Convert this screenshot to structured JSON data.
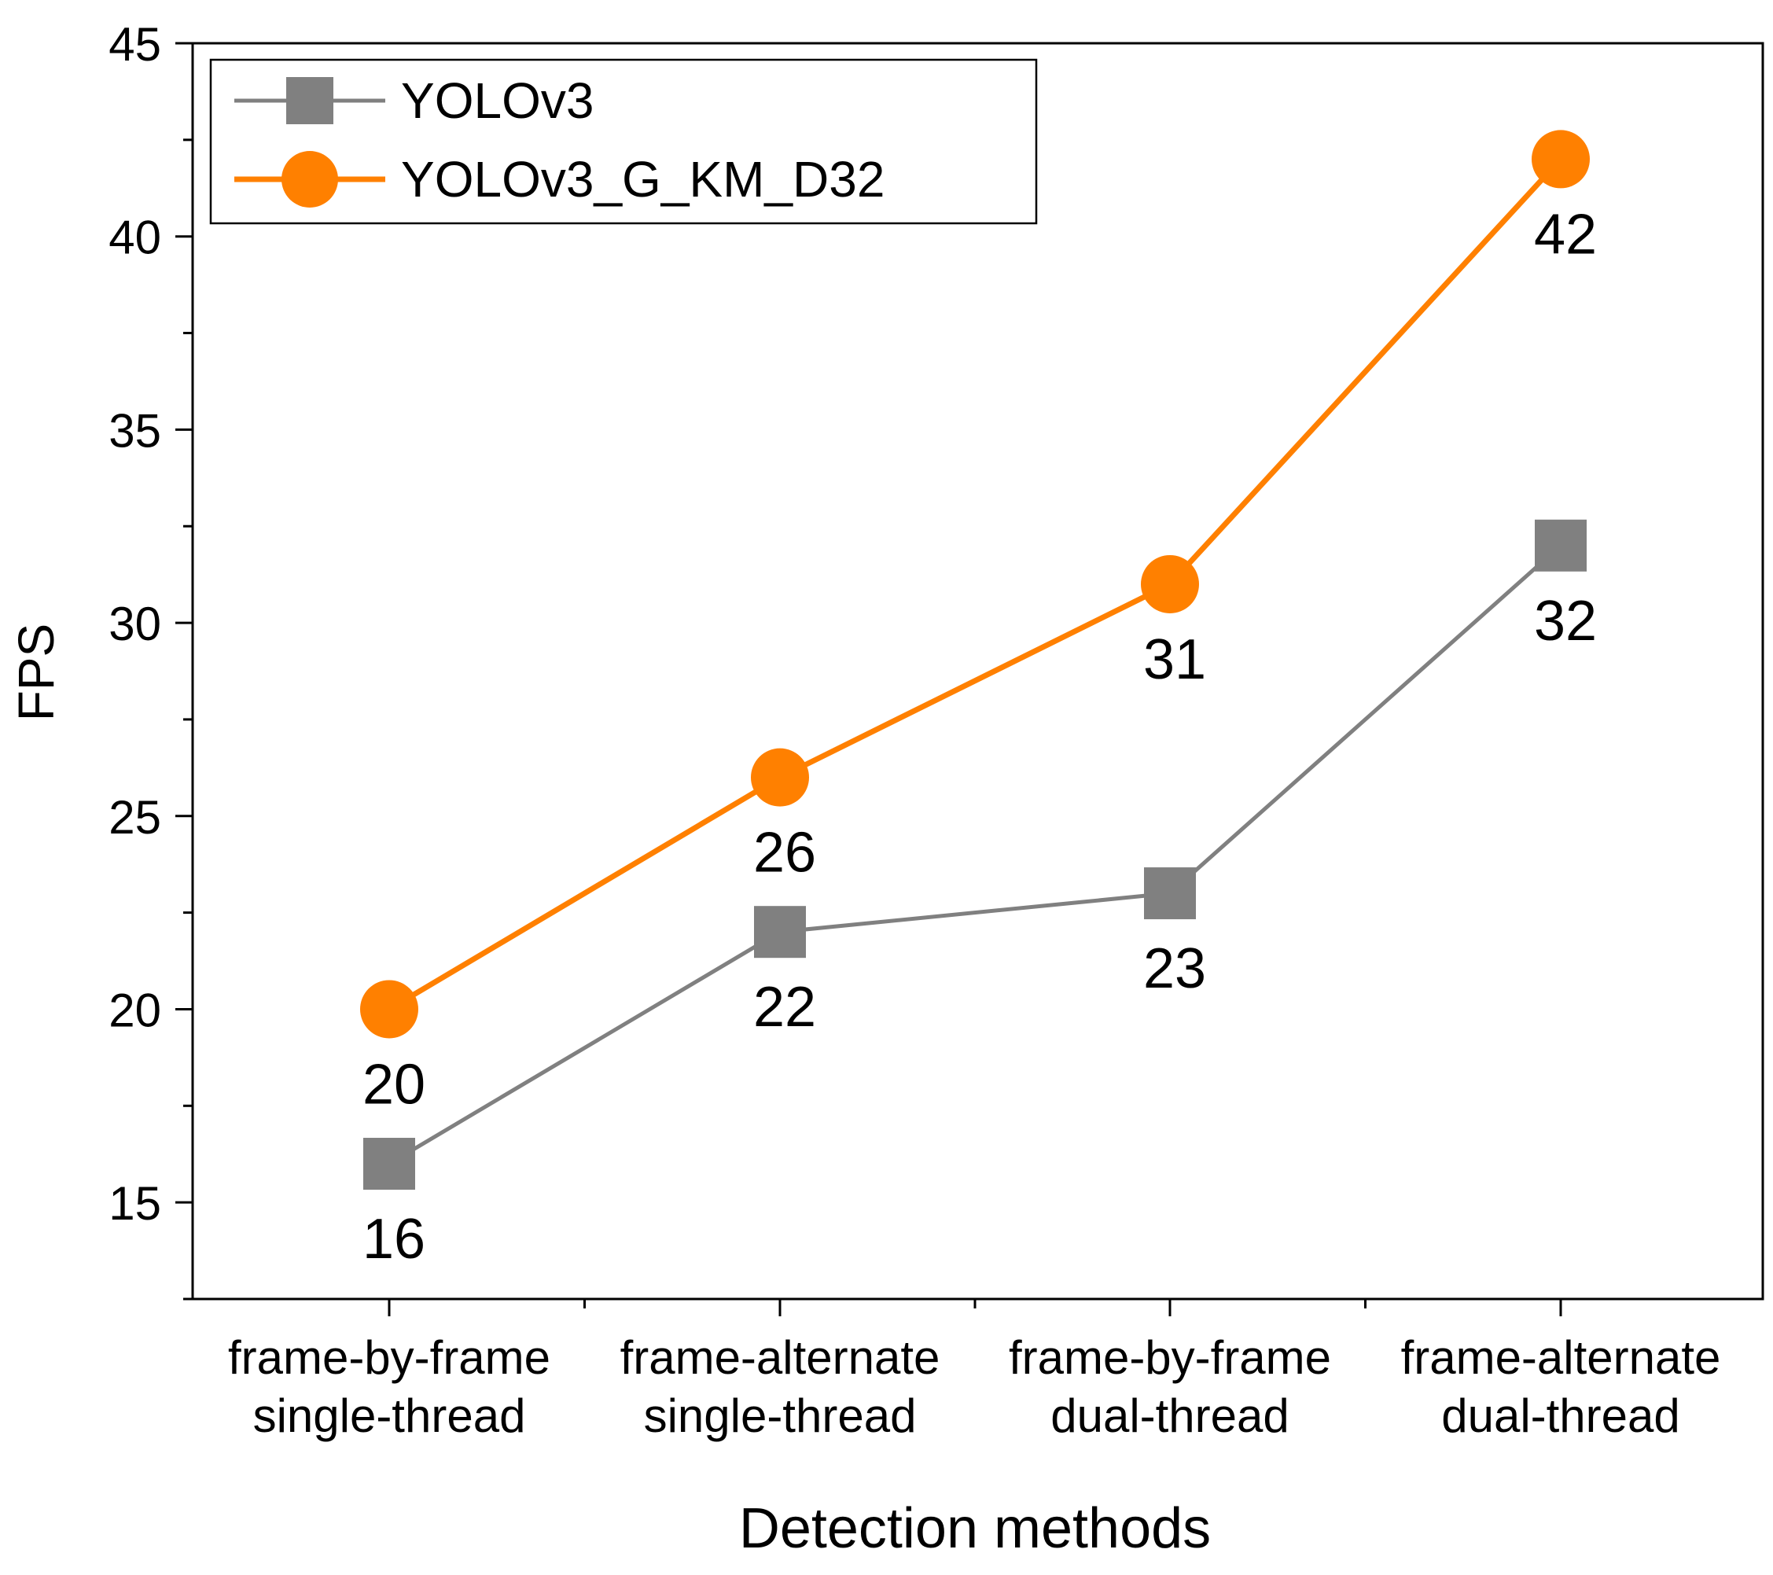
{
  "chart_data": {
    "type": "line",
    "title": "",
    "xlabel": "Detection methods",
    "ylabel": "FPS",
    "ylim": [
      12.5,
      45
    ],
    "y_major_ticks": [
      15,
      20,
      25,
      30,
      35,
      40,
      45
    ],
    "y_minor_ticks": [
      12.5,
      17.5,
      22.5,
      27.5,
      32.5,
      37.5,
      42.5
    ],
    "categories": [
      [
        "frame-by-frame",
        "single-thread"
      ],
      [
        "frame-alternate",
        "single-thread"
      ],
      [
        "frame-by-frame",
        "dual-thread"
      ],
      [
        "frame-alternate",
        "dual-thread"
      ]
    ],
    "series": [
      {
        "name": "YOLOv3",
        "values": [
          16,
          22,
          23,
          32
        ],
        "color": "#808080",
        "marker": "square"
      },
      {
        "name": "YOLOv3_G_KM_D32",
        "values": [
          20,
          26,
          31,
          42
        ],
        "color": "#ff8000",
        "marker": "circle"
      }
    ],
    "legend": {
      "position": "top-left",
      "framed": true
    },
    "grid": false
  }
}
